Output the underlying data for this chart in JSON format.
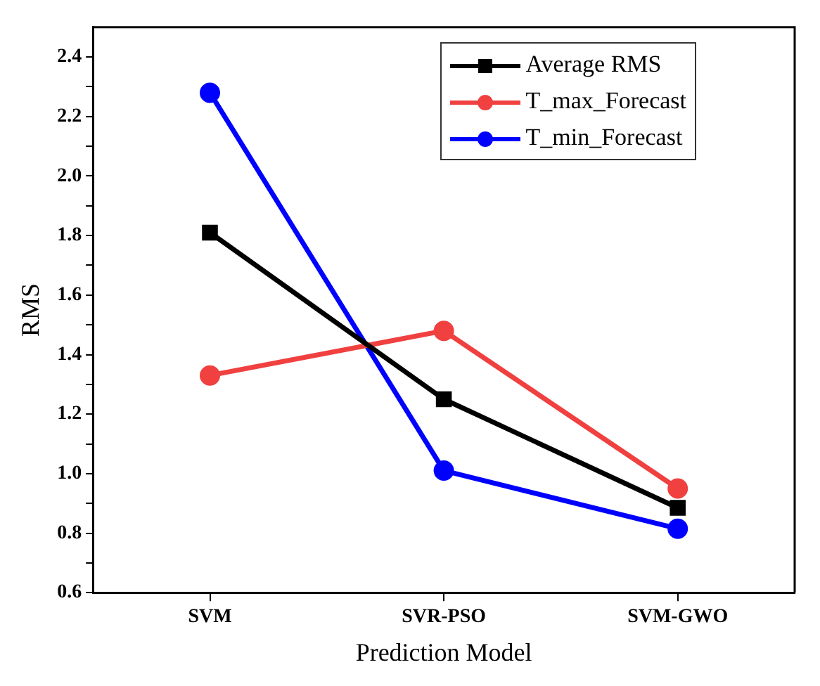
{
  "chart_data": {
    "type": "line",
    "xlabel": "Prediction Model",
    "ylabel": "RMS",
    "categories": [
      "SVM",
      "SVR-PSO",
      "SVM-GWO"
    ],
    "series": [
      {
        "name": "Average RMS",
        "color": "#000000",
        "values": [
          1.81,
          1.25,
          0.885
        ],
        "marker": "square"
      },
      {
        "name": "T_max_Forecast",
        "color": "#f04040",
        "values": [
          1.33,
          1.48,
          0.95
        ],
        "marker": "circle"
      },
      {
        "name": "T_min_Forecast",
        "color": "#0000ff",
        "values": [
          2.28,
          1.01,
          0.815
        ],
        "marker": "circle"
      }
    ],
    "ylim": [
      0.6,
      2.5
    ],
    "yticks": [
      0.6,
      {
        "value": 0.7,
        "label": null
      },
      0.8,
      {
        "value": 0.9,
        "label": null
      },
      {
        "value": 1.0,
        "label": "1.0"
      },
      {
        "value": 1.1,
        "label": null
      },
      1.2,
      {
        "value": 1.3,
        "label": null
      },
      1.4,
      {
        "value": 1.5,
        "label": null
      },
      1.6,
      {
        "value": 1.7,
        "label": null
      },
      1.8,
      {
        "value": 1.9,
        "label": null
      },
      {
        "value": 2.0,
        "label": "2.0"
      },
      {
        "value": 2.1,
        "label": null
      },
      2.2,
      {
        "value": 2.3,
        "label": null
      },
      2.4
    ],
    "grid": false,
    "legend": "top right",
    "line_style": "solid"
  }
}
